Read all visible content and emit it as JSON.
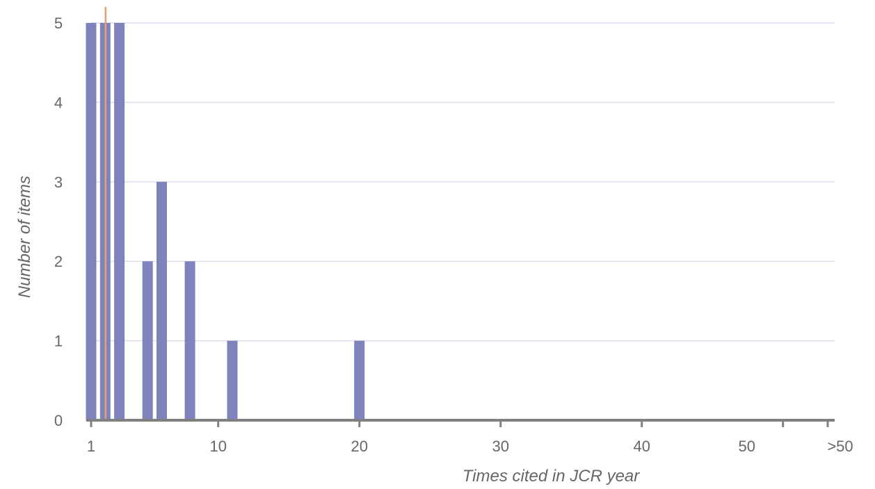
{
  "chart_data": {
    "type": "bar",
    "xlabel": "Times cited in JCR year",
    "ylabel": "Number of items",
    "ylim": [
      0,
      5
    ],
    "y_ticks": [
      "0",
      "1",
      "2",
      "3",
      "4",
      "5"
    ],
    "x_ticks": [
      "1",
      "10",
      "20",
      "30",
      "40",
      "50",
      ">50"
    ],
    "grid": true,
    "bar_color": "#7e84bb",
    "marker_color": "#e8a06c",
    "axis_color": "#808080",
    "grid_color": "#dcdcec",
    "bars": [
      {
        "x": 1,
        "value": 5
      },
      {
        "x": 2,
        "value": 5
      },
      {
        "x": 3,
        "value": 5
      },
      {
        "x": 5,
        "value": 2
      },
      {
        "x": 6,
        "value": 3
      },
      {
        "x": 8,
        "value": 2
      },
      {
        "x": 11,
        "value": 1
      },
      {
        "x": 20,
        "value": 1
      }
    ],
    "reference_line_x": 2
  }
}
